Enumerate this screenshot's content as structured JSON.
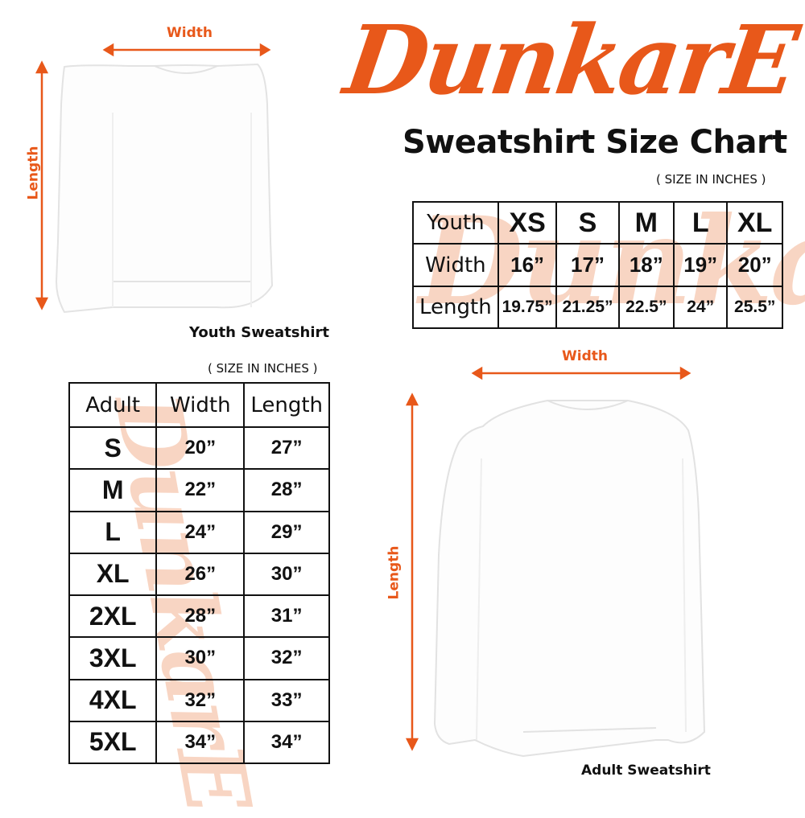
{
  "brand": {
    "logo_text": "DunkarE",
    "accent_color": "#E8581A",
    "watermark_color": "#F6C8B0"
  },
  "title": "Sweatshirt Size Chart",
  "youth": {
    "unit_note": "( SIZE IN INCHES )",
    "caption": "Youth Sweatshirt",
    "width_label": "Width",
    "length_label": "Length",
    "table": {
      "header": [
        "Youth",
        "XS",
        "S",
        "M",
        "L",
        "XL"
      ],
      "rows": [
        [
          "Width",
          "16”",
          "17”",
          "18”",
          "19”",
          "20”"
        ],
        [
          "Length",
          "19.75”",
          "21.25”",
          "22.5”",
          "24”",
          "25.5”"
        ]
      ]
    }
  },
  "adult": {
    "unit_note": "( SIZE IN INCHES )",
    "caption": "Adult Sweatshirt",
    "width_label": "Width",
    "length_label": "Length",
    "table": {
      "header": [
        "Adult",
        "Width",
        "Length"
      ],
      "rows": [
        [
          "S",
          "20”",
          "27”"
        ],
        [
          "M",
          "22”",
          "28”"
        ],
        [
          "L",
          "24”",
          "29”"
        ],
        [
          "XL",
          "26”",
          "30”"
        ],
        [
          "2XL",
          "28”",
          "31”"
        ],
        [
          "3XL",
          "30”",
          "32”"
        ],
        [
          "4XL",
          "32”",
          "33”"
        ],
        [
          "5XL",
          "34”",
          "34”"
        ]
      ]
    }
  }
}
